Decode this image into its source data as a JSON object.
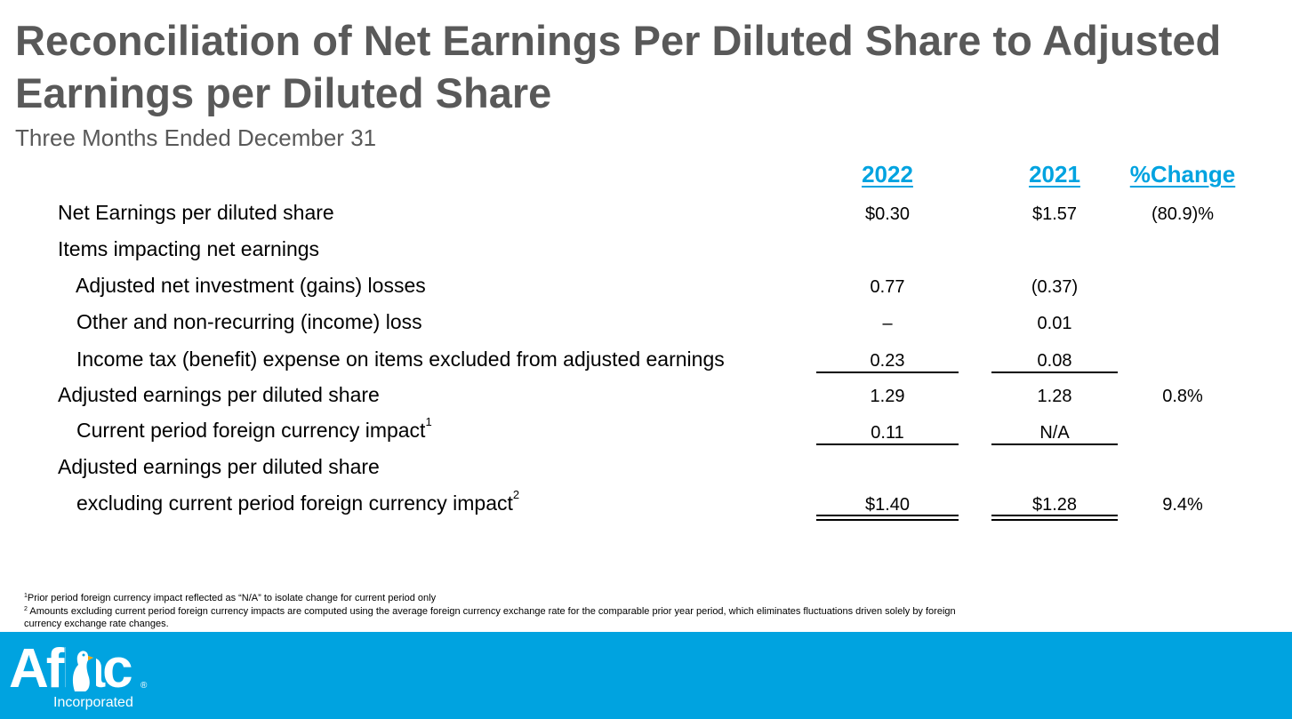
{
  "title": "Reconciliation of Net Earnings Per Diluted Share to Adjusted Earnings per Diluted Share",
  "subtitle": "Three Months Ended December 31",
  "columns": {
    "y2022": "2022",
    "y2021": "2021",
    "change": "%Change"
  },
  "rows": [
    {
      "label": "Net Earnings per diluted share",
      "v2022": "$0.30",
      "v2021": "$1.57",
      "change": "(80.9)%"
    },
    {
      "label": "Items impacting net earnings",
      "v2022": "",
      "v2021": "",
      "change": ""
    },
    {
      "label": "Adjusted net investment (gains) losses",
      "v2022": "0.77",
      "v2021": "(0.37)",
      "change": ""
    },
    {
      "label": "Other and non-recurring (income) loss",
      "v2022": "–",
      "v2021": "0.01",
      "change": ""
    },
    {
      "label": "Income tax (benefit) expense on items excluded from adjusted earnings",
      "v2022": "0.23",
      "v2021": "0.08",
      "change": ""
    },
    {
      "label": "Adjusted earnings per diluted share",
      "v2022": "1.29",
      "v2021": "1.28",
      "change": "0.8%"
    },
    {
      "label": "Current period foreign currency impact",
      "sup": "1",
      "v2022": "0.11",
      "v2021": "N/A",
      "change": ""
    },
    {
      "label": "Adjusted earnings per diluted share",
      "v2022": "",
      "v2021": "",
      "change": ""
    },
    {
      "label": "excluding current period foreign currency impact",
      "sup": "2",
      "v2022": "$1.40",
      "v2021": "$1.28",
      "change": "9.4%"
    }
  ],
  "footnotes": {
    "f1_mark": "1",
    "f1": "Prior period foreign currency impact reflected as “N/A” to isolate change for current period only",
    "f2_mark": "2",
    "f2": "Amounts excluding current period foreign currency impacts are computed using the average foreign currency exchange rate for the comparable prior year period, which eliminates fluctuations driven solely by foreign currency exchange rate changes."
  },
  "logo": {
    "word": "Aflac",
    "registered": "®",
    "sub": "Incorporated"
  },
  "colors": {
    "accent": "#00a3e0",
    "title": "#595959"
  }
}
